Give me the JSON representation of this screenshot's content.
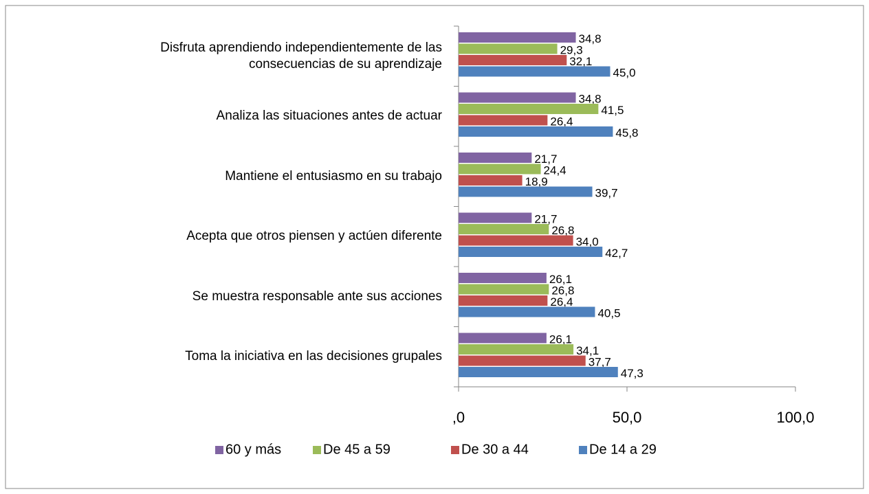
{
  "chart_data": {
    "type": "barh",
    "categories": [
      "Disfruta aprendiendo independientemente de las consecuencias de su aprendizaje",
      "Analiza las situaciones antes de actuar",
      "Mantiene el entusiasmo en su trabajo",
      "Acepta que otros piensen y actúen diferente",
      "Se muestra responsable ante sus acciones",
      "Toma la iniciativa en las decisiones grupales"
    ],
    "series": [
      {
        "name": "60 y más",
        "color": "#8064a2",
        "values": [
          34.8,
          34.8,
          21.7,
          21.7,
          26.1,
          26.1
        ],
        "value_labels": [
          "34,8",
          "34,8",
          "21,7",
          "21,7",
          "26,1",
          "26,1"
        ]
      },
      {
        "name": "De 45 a 59",
        "color": "#9bbb59",
        "values": [
          29.3,
          41.5,
          24.4,
          26.8,
          26.8,
          34.1
        ],
        "value_labels": [
          "29,3",
          "41,5",
          "24,4",
          "26,8",
          "26,8",
          "34,1"
        ]
      },
      {
        "name": "De 30 a 44",
        "color": "#c0504d",
        "values": [
          32.1,
          26.4,
          18.9,
          34.0,
          26.4,
          37.7
        ],
        "value_labels": [
          "32,1",
          "26,4",
          "18,9",
          "34,0",
          "26,4",
          "37,7"
        ]
      },
      {
        "name": "De 14 a 29",
        "color": "#4f81bd",
        "values": [
          45.0,
          45.8,
          39.7,
          42.7,
          40.5,
          47.3
        ],
        "value_labels": [
          "45,0",
          "45,8",
          "39,7",
          "42,7",
          "40,5",
          "47,3"
        ]
      }
    ],
    "xlim": [
      0,
      100
    ],
    "xticks": [
      {
        "value": 0,
        "label": ",0"
      },
      {
        "value": 50,
        "label": "50,0"
      },
      {
        "value": 100,
        "label": "100,0"
      }
    ],
    "legend": "bottom"
  }
}
